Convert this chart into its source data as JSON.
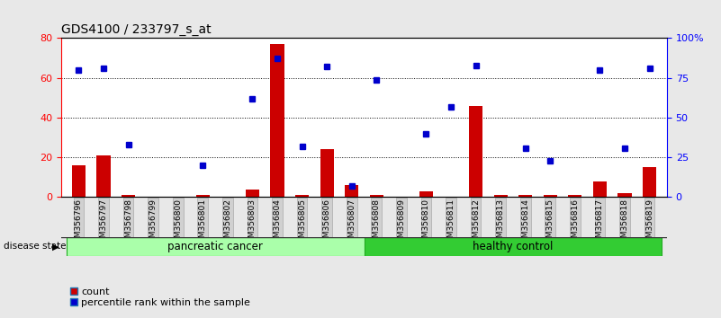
{
  "title": "GDS4100 / 233797_s_at",
  "samples": [
    "GSM356796",
    "GSM356797",
    "GSM356798",
    "GSM356799",
    "GSM356800",
    "GSM356801",
    "GSM356802",
    "GSM356803",
    "GSM356804",
    "GSM356805",
    "GSM356806",
    "GSM356807",
    "GSM356808",
    "GSM356809",
    "GSM356810",
    "GSM356811",
    "GSM356812",
    "GSM356813",
    "GSM356814",
    "GSM356815",
    "GSM356816",
    "GSM356817",
    "GSM356818",
    "GSM356819"
  ],
  "counts": [
    16,
    21,
    1,
    0,
    0,
    1,
    0,
    4,
    77,
    1,
    24,
    6,
    1,
    0,
    3,
    0,
    46,
    1,
    1,
    1,
    1,
    8,
    2,
    15
  ],
  "percentile_ranks": [
    80,
    81,
    33,
    null,
    null,
    20,
    null,
    62,
    87,
    32,
    82,
    7,
    74,
    null,
    40,
    57,
    83,
    null,
    31,
    23,
    null,
    80,
    31,
    81
  ],
  "bar_color": "#cc0000",
  "dot_color": "#0000cc",
  "pancreatic_cancer_count": 12,
  "healthy_control_count": 12,
  "group1_label": "pancreatic cancer",
  "group2_label": "healthy control",
  "group1_color": "#aaffaa",
  "group2_color": "#33cc33",
  "left_ylim": [
    0,
    80
  ],
  "right_ylim": [
    0,
    100
  ],
  "left_yticks": [
    0,
    20,
    40,
    60,
    80
  ],
  "right_yticks": [
    0,
    25,
    50,
    75,
    100
  ],
  "right_yticklabels": [
    "0",
    "25",
    "50",
    "75",
    "100%"
  ],
  "legend_count_label": "count",
  "legend_pct_label": "percentile rank within the sample",
  "fig_bg_color": "#e8e8e8",
  "plot_bg_color": "#ffffff",
  "tick_label_bg": "#d0d0d0",
  "tick_label_edge": "#aaaaaa"
}
